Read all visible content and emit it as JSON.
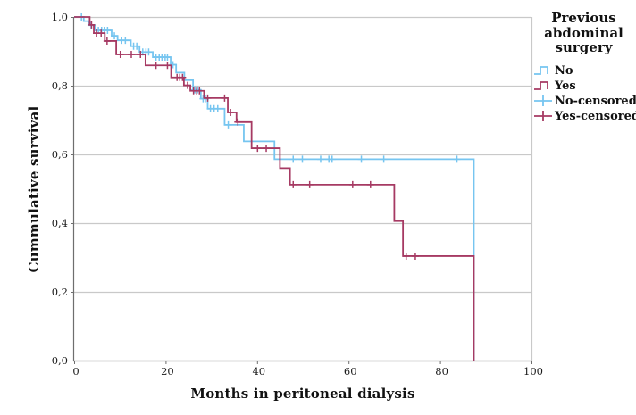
{
  "figure": {
    "background": "#ffffff",
    "grid_color": "#c9c9c9",
    "axis_color": "#6e6e6e",
    "text_color": "#1a1a1a"
  },
  "x_axis": {
    "title": "Months in peritoneal dialysis",
    "tick_labels": [
      "0",
      "20",
      "40",
      "60",
      "80",
      "100"
    ],
    "tick_values": [
      0,
      20,
      40,
      60,
      80,
      100
    ]
  },
  "y_axis": {
    "title": "Cummulative survival",
    "tick_labels": [
      "0,0",
      "0,2",
      "0,4",
      "0,6",
      "0,8",
      "1,0"
    ],
    "tick_values": [
      0,
      0.2,
      0.4,
      0.6,
      0.8,
      1.0
    ]
  },
  "legend": {
    "title": "Previous abdominal surgery",
    "entries": [
      {
        "label": "No",
        "glyph": "step-line-icon",
        "color": "#76c5f0"
      },
      {
        "label": "Yes",
        "glyph": "step-line-icon",
        "color": "#a63a63"
      },
      {
        "label": "No-censored",
        "glyph": "censor-plus-icon",
        "color": "#76c5f0"
      },
      {
        "label": "Yes-censored",
        "glyph": "censor-plus-icon",
        "color": "#a63a63"
      }
    ]
  },
  "chart_data": {
    "type": "line",
    "subtype": "kaplan-meier-step",
    "title": "",
    "xlabel": "Months in peritoneal dialysis",
    "ylabel": "Cummulative survival",
    "xlim": [
      0,
      100
    ],
    "ylim": [
      0.0,
      1.0
    ],
    "grid": "horizontal",
    "legend_position": "right",
    "series": [
      {
        "name": "No",
        "color": "#76c5f0",
        "steps": [
          [
            0,
            1.0
          ],
          [
            2.1,
            0.988
          ],
          [
            3.3,
            0.976
          ],
          [
            4.6,
            0.961
          ],
          [
            8.2,
            0.945
          ],
          [
            9.5,
            0.932
          ],
          [
            12.4,
            0.915
          ],
          [
            14.3,
            0.898
          ],
          [
            17.2,
            0.883
          ],
          [
            21.1,
            0.861
          ],
          [
            22.3,
            0.838
          ],
          [
            24.1,
            0.816
          ],
          [
            26.0,
            0.788
          ],
          [
            27.7,
            0.762
          ],
          [
            29.2,
            0.733
          ],
          [
            32.9,
            0.686
          ],
          [
            37.1,
            0.638
          ],
          [
            43.8,
            0.586
          ],
          [
            87.4,
            0.0
          ]
        ],
        "censored": [
          [
            1.6,
            1.0
          ],
          [
            3.7,
            0.976
          ],
          [
            5.3,
            0.961
          ],
          [
            6.0,
            0.961
          ],
          [
            6.6,
            0.961
          ],
          [
            7.3,
            0.961
          ],
          [
            8.8,
            0.945
          ],
          [
            10.4,
            0.932
          ],
          [
            11.2,
            0.932
          ],
          [
            13.0,
            0.915
          ],
          [
            13.7,
            0.915
          ],
          [
            15.0,
            0.898
          ],
          [
            15.7,
            0.898
          ],
          [
            16.3,
            0.898
          ],
          [
            17.9,
            0.883
          ],
          [
            18.6,
            0.883
          ],
          [
            19.2,
            0.883
          ],
          [
            19.9,
            0.883
          ],
          [
            20.4,
            0.883
          ],
          [
            21.6,
            0.861
          ],
          [
            26.4,
            0.788
          ],
          [
            27.0,
            0.788
          ],
          [
            28.2,
            0.762
          ],
          [
            28.7,
            0.762
          ],
          [
            29.8,
            0.733
          ],
          [
            30.6,
            0.733
          ],
          [
            31.4,
            0.733
          ],
          [
            33.7,
            0.686
          ],
          [
            47.9,
            0.586
          ],
          [
            49.9,
            0.586
          ],
          [
            53.9,
            0.586
          ],
          [
            55.7,
            0.586
          ],
          [
            56.4,
            0.586
          ],
          [
            62.8,
            0.586
          ],
          [
            67.7,
            0.586
          ],
          [
            83.7,
            0.586
          ]
        ]
      },
      {
        "name": "Yes",
        "color": "#a63a63",
        "steps": [
          [
            0,
            1.0
          ],
          [
            3.4,
            0.977
          ],
          [
            4.3,
            0.953
          ],
          [
            6.7,
            0.93
          ],
          [
            9.2,
            0.891
          ],
          [
            15.6,
            0.859
          ],
          [
            21.2,
            0.824
          ],
          [
            24.0,
            0.801
          ],
          [
            25.4,
            0.785
          ],
          [
            28.4,
            0.764
          ],
          [
            33.6,
            0.722
          ],
          [
            35.5,
            0.694
          ],
          [
            38.8,
            0.618
          ],
          [
            45.0,
            0.56
          ],
          [
            47.2,
            0.512
          ],
          [
            70.0,
            0.406
          ],
          [
            71.9,
            0.304
          ],
          [
            87.4,
            0.0
          ]
        ],
        "censored": [
          [
            3.8,
            0.977
          ],
          [
            4.9,
            0.953
          ],
          [
            5.9,
            0.953
          ],
          [
            7.2,
            0.93
          ],
          [
            10.1,
            0.891
          ],
          [
            12.5,
            0.891
          ],
          [
            14.5,
            0.891
          ],
          [
            17.9,
            0.859
          ],
          [
            20.4,
            0.859
          ],
          [
            22.5,
            0.824
          ],
          [
            23.1,
            0.824
          ],
          [
            23.7,
            0.824
          ],
          [
            24.8,
            0.801
          ],
          [
            26.1,
            0.785
          ],
          [
            26.8,
            0.785
          ],
          [
            27.4,
            0.785
          ],
          [
            29.2,
            0.764
          ],
          [
            32.9,
            0.764
          ],
          [
            34.2,
            0.722
          ],
          [
            35.8,
            0.694
          ],
          [
            40.1,
            0.618
          ],
          [
            42.0,
            0.618
          ],
          [
            47.9,
            0.512
          ],
          [
            51.5,
            0.512
          ],
          [
            60.9,
            0.512
          ],
          [
            64.8,
            0.512
          ],
          [
            72.6,
            0.304
          ],
          [
            74.6,
            0.304
          ]
        ]
      }
    ]
  }
}
